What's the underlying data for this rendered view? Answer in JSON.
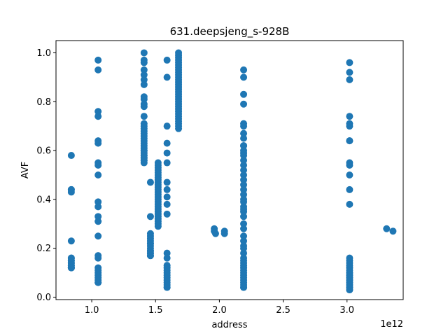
{
  "chart_data": {
    "type": "scatter",
    "title": "631.deepsjeng_s-928B",
    "xlabel": "address",
    "ylabel": "AVF",
    "x_offset_label": "1e12",
    "xlim": [
      0.72,
      3.44
    ],
    "ylim": [
      -0.01,
      1.05
    ],
    "x_ticks": [
      1.0,
      1.5,
      2.0,
      2.5,
      3.0
    ],
    "x_tick_labels": [
      "1.0",
      "1.5",
      "2.0",
      "2.5",
      "3.0"
    ],
    "y_ticks": [
      0.0,
      0.2,
      0.4,
      0.6,
      0.8,
      1.0
    ],
    "y_tick_labels": [
      "0.0",
      "0.2",
      "0.4",
      "0.6",
      "0.8",
      "1.0"
    ],
    "marker_color": "#1f77b4",
    "series": [
      {
        "x": [
          0.84,
          0.84,
          0.84,
          0.84,
          0.84,
          0.84,
          0.84,
          0.84,
          0.84,
          0.84,
          0.84,
          0.84,
          0.84,
          0.84,
          0.84,
          0.84,
          1.05,
          1.05,
          1.05,
          1.05,
          1.05,
          1.05,
          1.05,
          1.05,
          1.05,
          1.05,
          1.05,
          1.05,
          1.05,
          1.05,
          1.05,
          1.05,
          1.05,
          1.05,
          1.05,
          1.05,
          1.05,
          1.05,
          1.05,
          1.05,
          1.41,
          1.41,
          1.41,
          1.41,
          1.41,
          1.41,
          1.41,
          1.41,
          1.41,
          1.41,
          1.41,
          1.41,
          1.41,
          1.41,
          1.41,
          1.41,
          1.41,
          1.41,
          1.41,
          1.41,
          1.41,
          1.41,
          1.41,
          1.41,
          1.41,
          1.41,
          1.41,
          1.41,
          1.41,
          1.41,
          1.41,
          1.41,
          1.41,
          1.46,
          1.46,
          1.46,
          1.46,
          1.46,
          1.46,
          1.46,
          1.46,
          1.46,
          1.46,
          1.46,
          1.46,
          1.46,
          1.46,
          1.46,
          1.46,
          1.52,
          1.52,
          1.52,
          1.52,
          1.52,
          1.52,
          1.52,
          1.52,
          1.52,
          1.52,
          1.52,
          1.52,
          1.52,
          1.52,
          1.52,
          1.52,
          1.52,
          1.52,
          1.52,
          1.52,
          1.52,
          1.52,
          1.52,
          1.52,
          1.52,
          1.52,
          1.52,
          1.59,
          1.59,
          1.59,
          1.59,
          1.59,
          1.59,
          1.59,
          1.59,
          1.59,
          1.59,
          1.59,
          1.59,
          1.59,
          1.59,
          1.59,
          1.59,
          1.59,
          1.59,
          1.59,
          1.59,
          1.59,
          1.59,
          1.59,
          1.59,
          1.68,
          1.68,
          1.68,
          1.68,
          1.68,
          1.68,
          1.68,
          1.68,
          1.68,
          1.68,
          1.68,
          1.68,
          1.68,
          1.68,
          1.68,
          1.68,
          1.68,
          1.68,
          1.68,
          1.68,
          1.68,
          1.68,
          1.68,
          1.68,
          1.68,
          1.68,
          1.68,
          1.68,
          1.68,
          1.68,
          1.68,
          1.68,
          1.96,
          1.96,
          1.97,
          2.04,
          2.04,
          2.19,
          2.19,
          2.19,
          2.19,
          2.19,
          2.19,
          2.19,
          2.19,
          2.19,
          2.19,
          2.19,
          2.19,
          2.19,
          2.19,
          2.19,
          2.19,
          2.19,
          2.19,
          2.19,
          2.19,
          2.19,
          2.19,
          2.19,
          2.19,
          2.19,
          2.19,
          2.19,
          2.19,
          2.19,
          2.19,
          2.19,
          2.19,
          2.19,
          2.19,
          2.19,
          2.19,
          2.19,
          2.19,
          2.19,
          2.19,
          2.19,
          2.19,
          2.19,
          2.19,
          2.19,
          2.19,
          2.19,
          2.19,
          3.02,
          3.02,
          3.02,
          3.02,
          3.02,
          3.02,
          3.02,
          3.02,
          3.02,
          3.02,
          3.02,
          3.02,
          3.02,
          3.02,
          3.02,
          3.02,
          3.02,
          3.02,
          3.02,
          3.02,
          3.02,
          3.02,
          3.02,
          3.02,
          3.02,
          3.02,
          3.02,
          3.02,
          3.02,
          3.02,
          3.02,
          3.02,
          3.02,
          3.02,
          3.02,
          3.02,
          3.31,
          3.36
        ],
        "y": [
          0.58,
          0.44,
          0.43,
          0.23,
          0.16,
          0.15,
          0.14,
          0.14,
          0.13,
          0.13,
          0.12,
          0.12,
          0.12,
          0.15,
          0.16,
          0.44,
          0.97,
          0.93,
          0.76,
          0.74,
          0.64,
          0.63,
          0.55,
          0.54,
          0.5,
          0.39,
          0.37,
          0.33,
          0.31,
          0.25,
          0.17,
          0.16,
          0.12,
          0.11,
          0.1,
          0.09,
          0.08,
          0.07,
          0.06,
          0.06,
          1.0,
          0.97,
          0.96,
          0.93,
          0.91,
          0.89,
          0.87,
          0.82,
          0.81,
          0.79,
          0.78,
          0.74,
          0.71,
          0.68,
          0.67,
          0.66,
          0.65,
          0.64,
          0.63,
          0.62,
          0.61,
          0.6,
          0.6,
          0.59,
          0.58,
          0.58,
          0.57,
          0.57,
          0.56,
          0.56,
          0.55,
          0.69,
          0.7,
          0.47,
          0.33,
          0.26,
          0.25,
          0.24,
          0.23,
          0.22,
          0.22,
          0.21,
          0.2,
          0.19,
          0.19,
          0.18,
          0.18,
          0.17,
          0.17,
          0.55,
          0.54,
          0.53,
          0.52,
          0.51,
          0.5,
          0.49,
          0.48,
          0.47,
          0.46,
          0.45,
          0.44,
          0.43,
          0.42,
          0.41,
          0.4,
          0.39,
          0.38,
          0.37,
          0.36,
          0.35,
          0.34,
          0.33,
          0.32,
          0.31,
          0.3,
          0.29,
          0.97,
          0.9,
          0.7,
          0.63,
          0.59,
          0.55,
          0.47,
          0.44,
          0.41,
          0.38,
          0.34,
          0.18,
          0.16,
          0.13,
          0.12,
          0.11,
          0.1,
          0.09,
          0.08,
          0.07,
          0.06,
          0.05,
          0.04,
          0.04,
          1.0,
          0.99,
          0.98,
          0.97,
          0.96,
          0.95,
          0.94,
          0.93,
          0.92,
          0.91,
          0.9,
          0.89,
          0.88,
          0.87,
          0.86,
          0.85,
          0.84,
          0.83,
          0.82,
          0.81,
          0.8,
          0.79,
          0.78,
          0.77,
          0.76,
          0.75,
          0.74,
          0.73,
          0.72,
          0.71,
          0.7,
          0.69,
          0.28,
          0.27,
          0.26,
          0.27,
          0.26,
          0.93,
          0.9,
          0.83,
          0.79,
          0.71,
          0.7,
          0.67,
          0.65,
          0.62,
          0.59,
          0.56,
          0.54,
          0.52,
          0.5,
          0.48,
          0.46,
          0.44,
          0.42,
          0.39,
          0.37,
          0.35,
          0.33,
          0.28,
          0.25,
          0.23,
          0.21,
          0.18,
          0.16,
          0.15,
          0.14,
          0.13,
          0.12,
          0.11,
          0.1,
          0.09,
          0.08,
          0.07,
          0.06,
          0.05,
          0.04,
          0.04,
          0.62,
          0.6,
          0.58,
          0.4,
          0.36,
          0.3,
          0.2,
          0.96,
          0.92,
          0.89,
          0.74,
          0.71,
          0.7,
          0.64,
          0.55,
          0.54,
          0.5,
          0.44,
          0.38,
          0.16,
          0.15,
          0.14,
          0.13,
          0.12,
          0.11,
          0.1,
          0.1,
          0.09,
          0.09,
          0.08,
          0.08,
          0.07,
          0.07,
          0.06,
          0.06,
          0.05,
          0.05,
          0.04,
          0.04,
          0.04,
          0.03,
          0.03,
          0.64,
          0.28,
          0.27
        ]
      }
    ]
  }
}
